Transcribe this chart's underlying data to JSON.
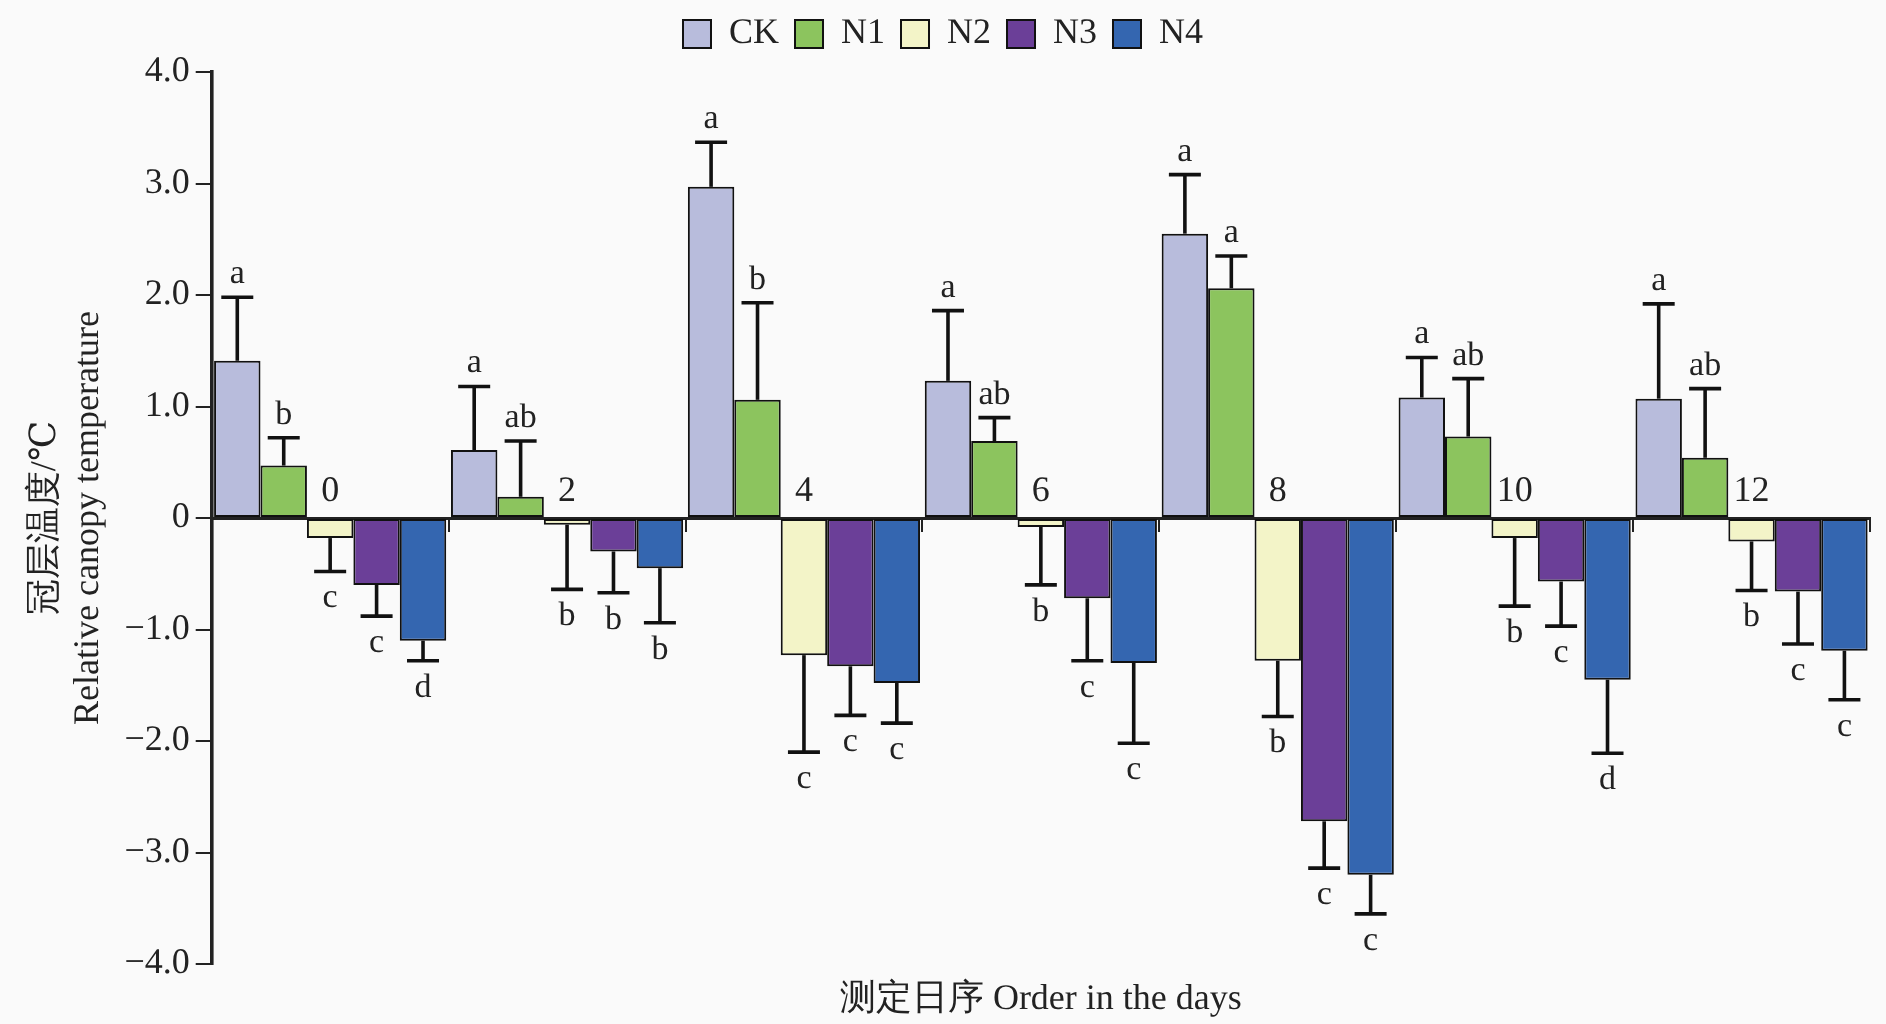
{
  "chart_data": {
    "type": "bar",
    "xlabel": "测定日序 Order in the days",
    "ylabel": "冠层温度/℃\nRelative canopy temperature",
    "categories": [
      "0",
      "2",
      "4",
      "6",
      "8",
      "10",
      "12"
    ],
    "ylim": [
      -4,
      4
    ],
    "yticks": [
      {
        "value": -4,
        "label": "−4.0"
      },
      {
        "value": -3,
        "label": "−3.0"
      },
      {
        "value": -2,
        "label": "−2.0"
      },
      {
        "value": -1,
        "label": "−1.0"
      },
      0,
      {
        "value": 1,
        "label": "1.0"
      },
      {
        "value": 2,
        "label": "2.0"
      },
      {
        "value": 3,
        "label": "3.0"
      },
      {
        "value": 4,
        "label": "4.0"
      }
    ],
    "grid": false,
    "legend": "top",
    "series": [
      {
        "name": "CK",
        "color": "#b8bcdc",
        "values": [
          1.41,
          0.61,
          2.97,
          1.23,
          2.55,
          1.08,
          1.07
        ],
        "errors": [
          [
            1.41,
            1.98
          ],
          [
            0.61,
            1.18
          ],
          [
            2.97,
            3.37
          ],
          [
            1.23,
            1.86
          ],
          [
            2.55,
            3.08
          ],
          [
            1.08,
            1.44
          ],
          [
            1.07,
            1.92
          ]
        ],
        "value_labels": [
          "a",
          "a",
          "a",
          "a",
          "a",
          "a",
          "a"
        ]
      },
      {
        "name": "N1",
        "color": "#8cc45e",
        "values": [
          0.47,
          0.19,
          1.06,
          0.69,
          2.06,
          0.73,
          0.54
        ],
        "errors": [
          [
            0.47,
            0.72
          ],
          [
            0.19,
            0.69
          ],
          [
            1.06,
            1.93
          ],
          [
            0.69,
            0.9
          ],
          [
            2.06,
            2.35
          ],
          [
            0.73,
            1.25
          ],
          [
            0.54,
            1.16
          ]
        ],
        "value_labels": [
          "b",
          "ab",
          "b",
          "ab",
          "a",
          "ab",
          "ab"
        ]
      },
      {
        "name": "N2",
        "color": "#f3f4c8",
        "values": [
          -0.18,
          -0.06,
          -1.23,
          -0.08,
          -1.28,
          -0.18,
          -0.21
        ],
        "errors": [
          [
            -0.48,
            -0.18
          ],
          [
            -0.64,
            -0.06
          ],
          [
            -2.1,
            -1.23
          ],
          [
            -0.6,
            -0.08
          ],
          [
            -1.78,
            -1.28
          ],
          [
            -0.79,
            -0.18
          ],
          [
            -0.65,
            -0.21
          ]
        ],
        "value_labels": [
          "c",
          "b",
          "c",
          "b",
          "b",
          "b",
          "b"
        ]
      },
      {
        "name": "N3",
        "color": "#6b3f98",
        "values": [
          -0.6,
          -0.3,
          -1.33,
          -0.72,
          -2.72,
          -0.57,
          -0.66
        ],
        "errors": [
          [
            -0.88,
            -0.6
          ],
          [
            -0.67,
            -0.3
          ],
          [
            -1.77,
            -1.33
          ],
          [
            -1.28,
            -0.72
          ],
          [
            -3.14,
            -2.72
          ],
          [
            -0.97,
            -0.57
          ],
          [
            -1.13,
            -0.66
          ]
        ],
        "value_labels": [
          "c",
          "b",
          "c",
          "c",
          "c",
          "c",
          "c"
        ]
      },
      {
        "name": "N4",
        "color": "#3466b0",
        "values": [
          -1.1,
          -0.45,
          -1.48,
          -1.3,
          -3.2,
          -1.45,
          -1.19
        ],
        "errors": [
          [
            -1.28,
            -1.1
          ],
          [
            -0.94,
            -0.45
          ],
          [
            -1.84,
            -1.48
          ],
          [
            -2.02,
            -1.3
          ],
          [
            -3.55,
            -3.2
          ],
          [
            -2.11,
            -1.45
          ],
          [
            -1.63,
            -1.19
          ]
        ],
        "value_labels": [
          "d",
          "b",
          "c",
          "c",
          "c",
          "d",
          "c"
        ]
      }
    ]
  }
}
